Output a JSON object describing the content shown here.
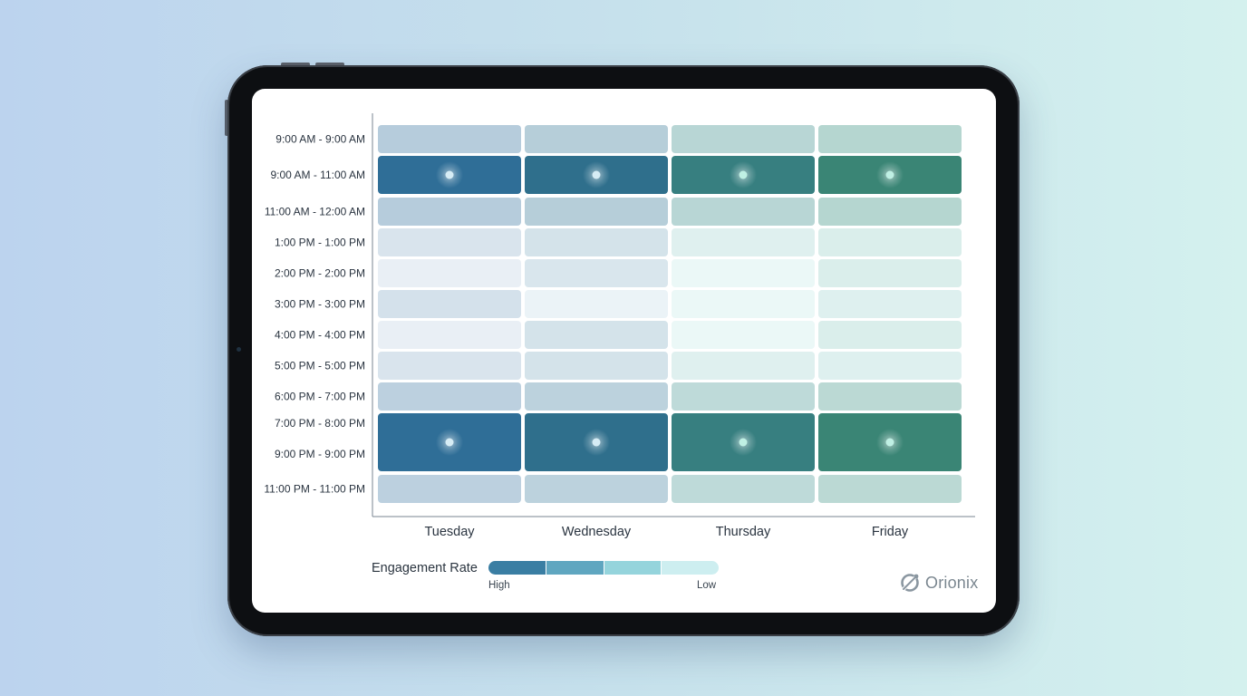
{
  "brand": {
    "name": "Orionix",
    "logo_icon": "orbit-logo-icon"
  },
  "legend": {
    "title": "Engagement Rate",
    "high_label": "High",
    "low_label": "Low",
    "colors": [
      "#3a7ea3",
      "#5fa6c0",
      "#95d4dc",
      "#cdeef0"
    ]
  },
  "chart_data": {
    "type": "heatmap",
    "x_categories": [
      "Tuesday",
      "Wednesday",
      "Thursday",
      "Friday"
    ],
    "y_categories": [
      "9:00 AM - 9:00 AM",
      "9:00 AM - 11:00 AM",
      "11:00 AM - 12:00 AM",
      "1:00 PM - 1:00 PM",
      "2:00 PM - 2:00 PM",
      "3:00 PM - 3:00 PM",
      "4:00 PM - 4:00 PM",
      "5:00 PM - 5:00 PM",
      "6:00 PM - 7:00 PM",
      "7:00 PM - 8:00 PM",
      "9:00 PM - 9:00 PM",
      "11:00 PM - 11:00 PM"
    ],
    "values": [
      [
        0.55,
        0.55,
        0.55,
        0.55
      ],
      [
        1.0,
        1.0,
        1.0,
        1.0
      ],
      [
        0.55,
        0.55,
        0.55,
        0.55
      ],
      [
        0.25,
        0.3,
        0.2,
        0.2
      ],
      [
        0.08,
        0.25,
        0.05,
        0.2
      ],
      [
        0.3,
        0.05,
        0.05,
        0.15
      ],
      [
        0.08,
        0.3,
        0.05,
        0.2
      ],
      [
        0.25,
        0.3,
        0.2,
        0.15
      ],
      [
        0.5,
        0.5,
        0.5,
        0.5
      ],
      [
        1.0,
        1.0,
        1.0,
        1.0
      ],
      [
        1.0,
        1.0,
        1.0,
        1.0
      ],
      [
        0.5,
        0.5,
        0.5,
        0.5
      ]
    ],
    "merged_cells": [
      {
        "rows": [
          9,
          10
        ],
        "cols": [
          0,
          1,
          2,
          3
        ]
      }
    ],
    "highlighted_rows": [
      1,
      9
    ],
    "column_palettes": [
      {
        "high": "#2f6e97",
        "low": "#eef3f8"
      },
      {
        "high": "#2f6f8c",
        "low": "#eef5f9"
      },
      {
        "high": "#377f80",
        "low": "#eefaf9"
      },
      {
        "high": "#3a8575",
        "low": "#e8f7f6"
      }
    ],
    "xlabel": "",
    "ylabel": "",
    "color_scale": "High to Low"
  }
}
